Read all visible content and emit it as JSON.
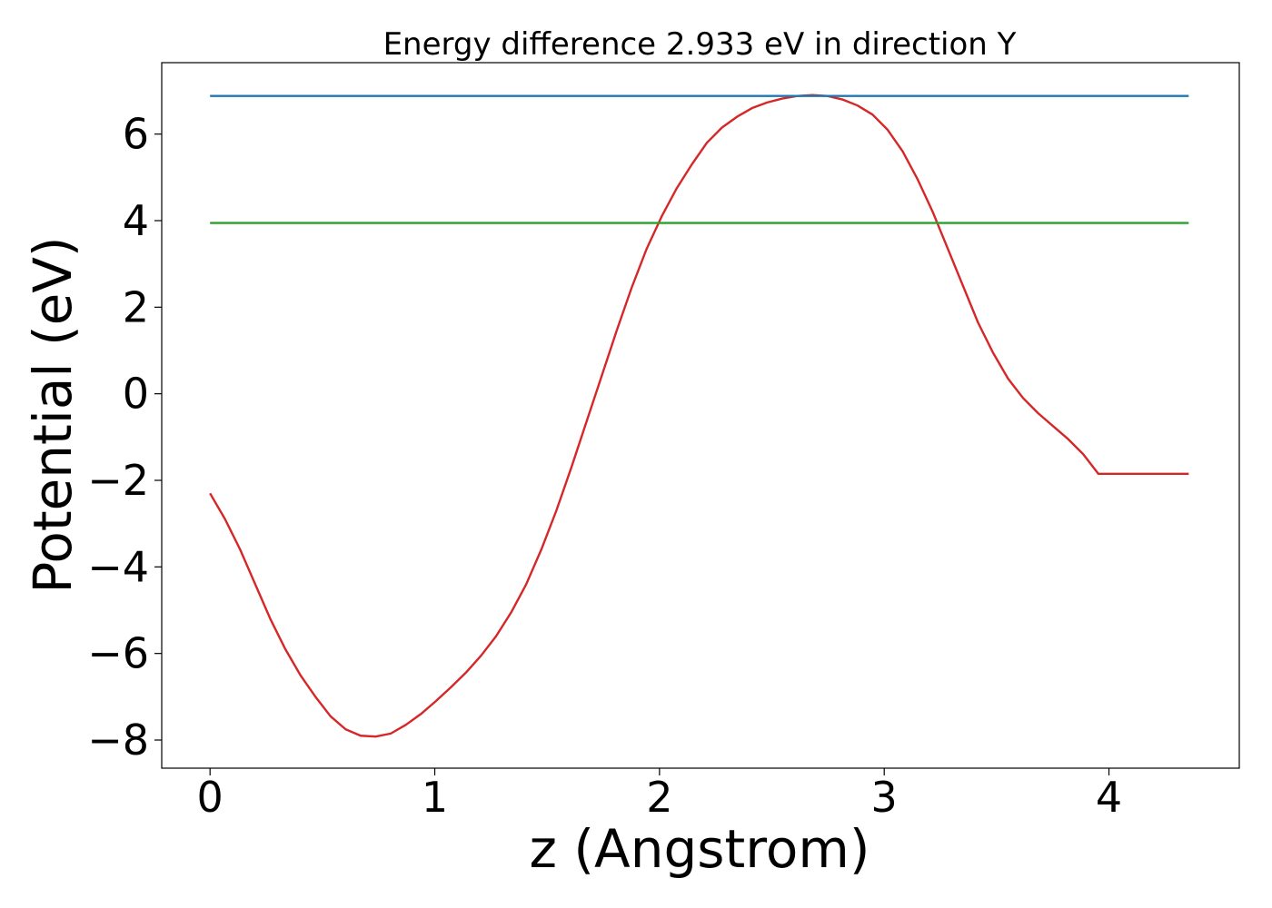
{
  "chart_data": {
    "type": "line",
    "title": "Energy difference 2.933 eV in direction Y",
    "xlabel": "z (Angstrom)",
    "ylabel": "Potential (eV)",
    "xlim": [
      -0.215,
      4.58
    ],
    "ylim": [
      -8.65,
      7.65
    ],
    "x_ticks": [
      0,
      1,
      2,
      3,
      4
    ],
    "x_tick_labels": [
      "0",
      "1",
      "2",
      "3",
      "4"
    ],
    "y_ticks": [
      -8,
      -6,
      -4,
      -2,
      0,
      2,
      4,
      6
    ],
    "y_tick_labels": [
      "−8",
      "−6",
      "−4",
      "−2",
      "0",
      "2",
      "4",
      "6"
    ],
    "grid": false,
    "series": [
      {
        "color": "#d62728",
        "x": [
          0,
          0.067,
          0.134,
          0.201,
          0.268,
          0.335,
          0.402,
          0.469,
          0.536,
          0.603,
          0.67,
          0.737,
          0.804,
          0.871,
          0.938,
          1.005,
          1.072,
          1.139,
          1.206,
          1.273,
          1.34,
          1.407,
          1.474,
          1.541,
          1.608,
          1.675,
          1.742,
          1.809,
          1.876,
          1.943,
          2.01,
          2.077,
          2.144,
          2.211,
          2.278,
          2.345,
          2.412,
          2.479,
          2.546,
          2.613,
          2.68,
          2.747,
          2.814,
          2.881,
          2.948,
          3.015,
          3.082,
          3.149,
          3.216,
          3.283,
          3.35,
          3.417,
          3.484,
          3.551,
          3.618,
          3.685,
          3.752,
          3.819,
          3.886,
          3.953,
          4.02,
          4.087,
          4.154,
          4.221,
          4.288,
          4.355
        ],
        "y": [
          -2.3,
          -2.9,
          -3.6,
          -4.4,
          -5.2,
          -5.9,
          -6.5,
          -7.0,
          -7.45,
          -7.75,
          -7.9,
          -7.92,
          -7.85,
          -7.65,
          -7.4,
          -7.1,
          -6.78,
          -6.44,
          -6.05,
          -5.6,
          -5.05,
          -4.4,
          -3.6,
          -2.7,
          -1.7,
          -0.65,
          0.4,
          1.45,
          2.45,
          3.35,
          4.1,
          4.75,
          5.3,
          5.8,
          6.15,
          6.4,
          6.6,
          6.73,
          6.82,
          6.88,
          6.9,
          6.88,
          6.8,
          6.66,
          6.45,
          6.1,
          5.6,
          4.95,
          4.2,
          3.35,
          2.5,
          1.65,
          0.95,
          0.35,
          -0.1,
          -0.45,
          -0.75,
          -1.05,
          -1.4,
          -1.85,
          -1.85,
          -1.85,
          -1.85,
          -1.85,
          -1.85,
          -1.85
        ]
      },
      {
        "color": "#1f77b4",
        "x": [
          0,
          4.355
        ],
        "y": [
          6.88,
          6.88
        ]
      },
      {
        "color": "#2ca02c",
        "x": [
          0,
          4.355
        ],
        "y": [
          3.947,
          3.947
        ]
      }
    ]
  }
}
